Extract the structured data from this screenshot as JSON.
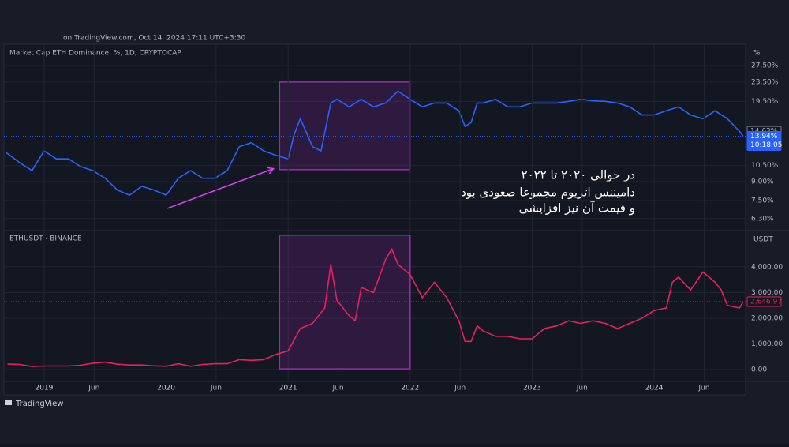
{
  "header": "on TradingView.com, Oct 14, 2024 17:11 UTC+3:30",
  "footer": "TradingView",
  "annotation": [
    "در حوالی ۲۰۲۰ تا ۲۰۲۲",
    "دامیننس اتریوم مجموعا صعودی بود",
    "و قیمت آن نیز افزایشی"
  ],
  "chart_data": [
    {
      "type": "line",
      "title": "Market Cap ETH Dominance, %, 1D, CRYPTOCAP",
      "unit": "%",
      "log_scale": true,
      "grid": true,
      "color": "#2962ff",
      "xlim": [
        2018.69,
        2024.75
      ],
      "ylim": [
        5.7,
        33.3
      ],
      "yticks": [
        {
          "value": 6.3,
          "label": "6.30%"
        },
        {
          "value": 7.5,
          "label": "7.50%"
        },
        {
          "value": 9,
          "label": "9.00%"
        },
        {
          "value": 10.5,
          "label": "10.50%"
        },
        {
          "value": 19.5,
          "label": "19.50%"
        },
        {
          "value": 23.5,
          "label": "23.50%"
        },
        {
          "value": 27.5,
          "label": "27.50%"
        }
      ],
      "price_labels": [
        {
          "value": 14.63,
          "label": "14.63%"
        },
        {
          "value": 13.94,
          "label": "13.94%"
        }
      ],
      "countdown": "10:18:05",
      "highlight": {
        "x": [
          2020.93,
          2022.0
        ],
        "y": [
          10.1,
          23.5
        ]
      },
      "arrow": {
        "x": [
          2020.01,
          2020.88
        ],
        "y": [
          6.95,
          10.2
        ]
      },
      "x": [
        2018.69,
        2018.8,
        2018.9,
        2019.0,
        2019.1,
        2019.2,
        2019.3,
        2019.4,
        2019.5,
        2019.6,
        2019.7,
        2019.8,
        2019.9,
        2020.0,
        2020.1,
        2020.2,
        2020.3,
        2020.4,
        2020.5,
        2020.6,
        2020.7,
        2020.8,
        2020.9,
        2021.0,
        2021.05,
        2021.1,
        2021.2,
        2021.27,
        2021.35,
        2021.4,
        2021.5,
        2021.6,
        2021.7,
        2021.8,
        2021.9,
        2022.0,
        2022.1,
        2022.2,
        2022.3,
        2022.4,
        2022.45,
        2022.5,
        2022.55,
        2022.6,
        2022.7,
        2022.8,
        2022.9,
        2023.0,
        2023.1,
        2023.2,
        2023.3,
        2023.4,
        2023.5,
        2023.6,
        2023.7,
        2023.8,
        2023.9,
        2024.0,
        2024.1,
        2024.2,
        2024.3,
        2024.4,
        2024.5,
        2024.6,
        2024.7,
        2024.73
      ],
      "values": [
        11.9,
        10.8,
        10.0,
        12.1,
        11.2,
        11.2,
        10.4,
        10.0,
        9.3,
        8.3,
        7.9,
        8.6,
        8.3,
        7.9,
        9.3,
        10.0,
        9.3,
        9.3,
        10.0,
        12.6,
        13.1,
        12.1,
        11.6,
        11.2,
        14.2,
        16.5,
        12.6,
        12.1,
        19.2,
        19.9,
        18.5,
        19.9,
        18.5,
        19.2,
        21.5,
        19.9,
        18.5,
        19.2,
        19.2,
        17.8,
        15.3,
        15.9,
        19.2,
        19.2,
        19.9,
        18.5,
        18.5,
        19.2,
        19.2,
        19.2,
        19.5,
        19.9,
        19.6,
        19.5,
        19.2,
        18.5,
        17.1,
        17.1,
        17.8,
        18.5,
        17.1,
        16.5,
        17.8,
        16.5,
        14.6,
        13.94
      ]
    },
    {
      "type": "line",
      "title": "ETHUSDT · BINANCE",
      "unit": "USDT",
      "log_scale": false,
      "grid": true,
      "color": "#e91e63",
      "xlim": [
        2018.69,
        2024.75
      ],
      "ylim": [
        -460,
        5320
      ],
      "yticks": [
        {
          "value": 0,
          "label": "0.00"
        },
        {
          "value": 1000,
          "label": "1,000.00"
        },
        {
          "value": 2000,
          "label": "2,000.00"
        },
        {
          "value": 3000,
          "label": "3,000.00"
        },
        {
          "value": 4000,
          "label": "4,000.00"
        }
      ],
      "xticks": [
        {
          "value": 2019.0,
          "label": "2019"
        },
        {
          "value": 2019.41,
          "label": "Jun"
        },
        {
          "value": 2020.0,
          "label": "2020"
        },
        {
          "value": 2020.41,
          "label": "Jun"
        },
        {
          "value": 2021.0,
          "label": "2021"
        },
        {
          "value": 2021.41,
          "label": "Jun"
        },
        {
          "value": 2022.0,
          "label": "2022"
        },
        {
          "value": 2022.41,
          "label": "Jun"
        },
        {
          "value": 2023.0,
          "label": "2023"
        },
        {
          "value": 2023.41,
          "label": "Jun"
        },
        {
          "value": 2024.0,
          "label": "2024"
        },
        {
          "value": 2024.41,
          "label": "Jun"
        }
      ],
      "price_labels": [
        {
          "value": 2646.97,
          "label": "2,646.97"
        }
      ],
      "highlight": {
        "x": [
          2020.93,
          2022.0
        ],
        "y": [
          30,
          5230
        ]
      },
      "x": [
        2018.7,
        2018.8,
        2018.9,
        2019.0,
        2019.1,
        2019.2,
        2019.3,
        2019.4,
        2019.5,
        2019.6,
        2019.7,
        2019.8,
        2019.9,
        2020.0,
        2020.1,
        2020.2,
        2020.3,
        2020.4,
        2020.5,
        2020.6,
        2020.7,
        2020.8,
        2020.9,
        2021.0,
        2021.1,
        2021.2,
        2021.3,
        2021.35,
        2021.4,
        2021.5,
        2021.55,
        2021.6,
        2021.7,
        2021.8,
        2021.85,
        2021.9,
        2022.0,
        2022.1,
        2022.2,
        2022.3,
        2022.4,
        2022.45,
        2022.5,
        2022.55,
        2022.6,
        2022.7,
        2022.8,
        2022.9,
        2023.0,
        2023.1,
        2023.2,
        2023.3,
        2023.4,
        2023.5,
        2023.6,
        2023.7,
        2023.8,
        2023.9,
        2024.0,
        2024.1,
        2024.15,
        2024.2,
        2024.3,
        2024.4,
        2024.5,
        2024.55,
        2024.6,
        2024.7,
        2024.73
      ],
      "values": [
        220,
        200,
        120,
        140,
        140,
        140,
        170,
        250,
        290,
        210,
        180,
        180,
        145,
        130,
        230,
        130,
        200,
        230,
        230,
        390,
        360,
        390,
        590,
        730,
        1600,
        1800,
        2400,
        4100,
        2700,
        2100,
        1900,
        3200,
        3000,
        4300,
        4700,
        4100,
        3700,
        2800,
        3400,
        2800,
        1900,
        1100,
        1100,
        1700,
        1500,
        1300,
        1300,
        1200,
        1200,
        1600,
        1700,
        1900,
        1800,
        1900,
        1800,
        1600,
        1800,
        2000,
        2300,
        2400,
        3400,
        3600,
        3100,
        3800,
        3400,
        3100,
        2500,
        2400,
        2646.97
      ]
    }
  ]
}
